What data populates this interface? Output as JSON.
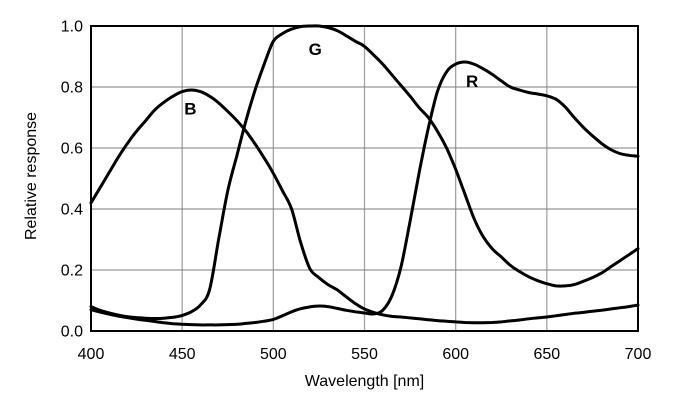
{
  "chart_data": {
    "type": "line",
    "xlabel": "Wavelength [nm]",
    "ylabel": "Relative response",
    "xlim": [
      400,
      700
    ],
    "ylim": [
      0.0,
      1.0
    ],
    "x_ticks": [
      "400",
      "450",
      "500",
      "550",
      "600",
      "650",
      "700"
    ],
    "y_ticks": [
      "0.0",
      "0.2",
      "0.4",
      "0.6",
      "0.8",
      "1.0"
    ],
    "grid": "on",
    "legend": "inline-curve-labels",
    "colors": {
      "curve": "#000000",
      "frame": "#000000",
      "grid_horizontal": "#7d7d7d",
      "grid_vertical": "#a3a3a3",
      "background": "#ffffff",
      "text": "#000000"
    },
    "x": [
      400,
      405,
      410,
      415,
      420,
      425,
      430,
      435,
      440,
      445,
      450,
      455,
      460,
      465,
      470,
      475,
      480,
      485,
      490,
      495,
      500,
      505,
      510,
      515,
      520,
      525,
      530,
      535,
      540,
      545,
      550,
      555,
      560,
      565,
      570,
      575,
      580,
      585,
      590,
      595,
      600,
      605,
      610,
      615,
      620,
      625,
      630,
      635,
      640,
      645,
      650,
      655,
      660,
      665,
      670,
      675,
      680,
      685,
      690,
      695,
      700
    ],
    "series": [
      {
        "name": "B",
        "label": "B",
        "peak": {
          "wavelength": 455,
          "value": 0.79
        },
        "label_at": [
          454.5,
          0.73
        ],
        "values": [
          0.42,
          0.47,
          0.52,
          0.57,
          0.615,
          0.655,
          0.69,
          0.725,
          0.75,
          0.77,
          0.785,
          0.79,
          0.785,
          0.77,
          0.748,
          0.72,
          0.69,
          0.655,
          0.613,
          0.567,
          0.517,
          0.46,
          0.4,
          0.29,
          0.205,
          0.175,
          0.152,
          0.135,
          0.112,
          0.09,
          0.072,
          0.061,
          0.053,
          0.048,
          0.046,
          0.043,
          0.04,
          0.037,
          0.034,
          0.032,
          0.03,
          0.028,
          0.027,
          0.027,
          0.028,
          0.03,
          0.033,
          0.036,
          0.04,
          0.043,
          0.046,
          0.05,
          0.054,
          0.058,
          0.061,
          0.065,
          0.068,
          0.072,
          0.076,
          0.08,
          0.085
        ]
      },
      {
        "name": "G",
        "label": "G",
        "peak": {
          "wavelength": 522,
          "value": 1.0
        },
        "label_at": [
          523,
          0.925
        ],
        "values": [
          0.08,
          0.068,
          0.059,
          0.052,
          0.047,
          0.044,
          0.042,
          0.041,
          0.042,
          0.045,
          0.051,
          0.063,
          0.085,
          0.135,
          0.3,
          0.46,
          0.575,
          0.69,
          0.79,
          0.875,
          0.95,
          0.975,
          0.99,
          0.998,
          1.0,
          1.0,
          0.995,
          0.985,
          0.968,
          0.95,
          0.933,
          0.905,
          0.875,
          0.84,
          0.805,
          0.77,
          0.732,
          0.7,
          0.655,
          0.6,
          0.53,
          0.45,
          0.37,
          0.31,
          0.27,
          0.243,
          0.215,
          0.195,
          0.178,
          0.165,
          0.155,
          0.148,
          0.148,
          0.152,
          0.163,
          0.175,
          0.19,
          0.21,
          0.23,
          0.25,
          0.27
        ]
      },
      {
        "name": "R",
        "label": "R",
        "peak": {
          "wavelength": 603,
          "value": 0.88
        },
        "label_at": [
          609,
          0.82
        ],
        "values": [
          0.07,
          0.062,
          0.055,
          0.049,
          0.044,
          0.039,
          0.035,
          0.031,
          0.027,
          0.024,
          0.022,
          0.021,
          0.02,
          0.02,
          0.02,
          0.021,
          0.022,
          0.025,
          0.028,
          0.032,
          0.038,
          0.05,
          0.063,
          0.073,
          0.079,
          0.082,
          0.08,
          0.074,
          0.068,
          0.063,
          0.059,
          0.056,
          0.068,
          0.115,
          0.21,
          0.36,
          0.52,
          0.665,
          0.785,
          0.85,
          0.875,
          0.882,
          0.875,
          0.86,
          0.842,
          0.82,
          0.8,
          0.79,
          0.782,
          0.777,
          0.771,
          0.76,
          0.735,
          0.7,
          0.668,
          0.64,
          0.615,
          0.595,
          0.582,
          0.576,
          0.573
        ]
      }
    ]
  }
}
